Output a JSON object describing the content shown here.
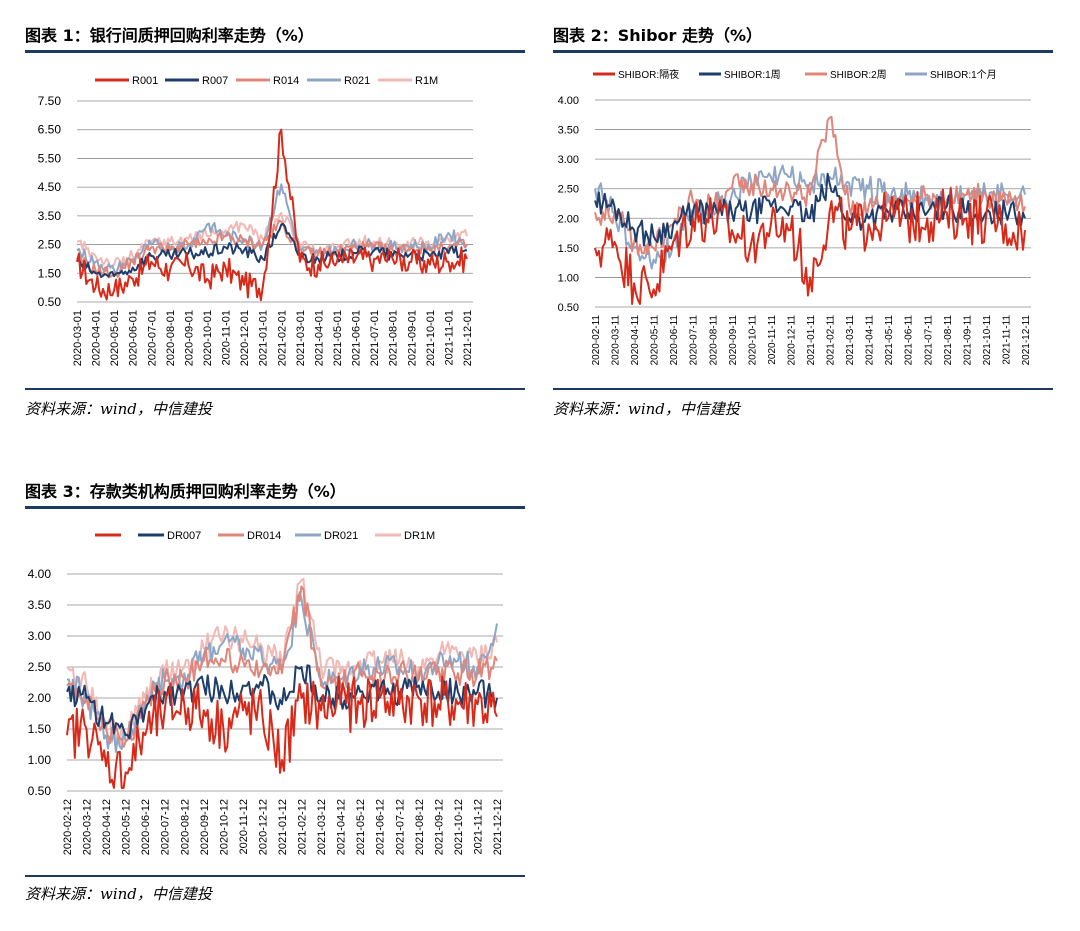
{
  "panels": [
    {
      "title": "图表 1：银行间质押回购利率走势（%）",
      "source": "资料来源：wind，中信建投",
      "chart_data": {
        "type": "line",
        "legend_placement": "top",
        "grid": "horizontal",
        "ylim": [
          0.5,
          7.5
        ],
        "yticks": [
          "7.50",
          "6.50",
          "5.50",
          "4.50",
          "3.50",
          "2.50",
          "1.50",
          "0.50"
        ],
        "x_labels": [
          "2020-03-01",
          "2020-04-01",
          "2020-05-01",
          "2020-06-01",
          "2020-07-01",
          "2020-08-01",
          "2020-09-01",
          "2020-10-01",
          "2020-11-01",
          "2020-12-01",
          "2021-01-01",
          "2021-02-01",
          "2021-03-01",
          "2021-04-01",
          "2021-05-01",
          "2021-06-01",
          "2021-07-01",
          "2021-08-01",
          "2021-09-01",
          "2021-10-01",
          "2021-11-01",
          "2021-12-01"
        ],
        "series": [
          {
            "name": "R001",
            "color": "#d62b1b",
            "values": [
              1.9,
              1.0,
              0.9,
              1.3,
              1.9,
              1.6,
              1.8,
              1.3,
              1.7,
              1.1,
              1.0,
              6.5,
              1.9,
              1.8,
              1.9,
              2.0,
              2.0,
              2.0,
              1.9,
              1.8,
              1.9,
              2.0
            ]
          },
          {
            "name": "R007",
            "color": "#1f3d6b",
            "values": [
              1.9,
              1.5,
              1.4,
              1.7,
              2.1,
              2.1,
              2.2,
              2.2,
              2.4,
              2.3,
              2.0,
              3.2,
              2.1,
              2.0,
              2.1,
              2.2,
              2.3,
              2.1,
              2.2,
              2.1,
              2.2,
              2.3
            ]
          },
          {
            "name": "R014",
            "color": "#e0857a",
            "values": [
              2.0,
              1.6,
              1.5,
              1.9,
              2.4,
              2.3,
              2.5,
              2.5,
              2.8,
              2.6,
              2.5,
              3.3,
              2.2,
              2.2,
              2.3,
              2.4,
              2.4,
              2.3,
              2.4,
              2.3,
              2.4,
              2.5
            ]
          },
          {
            "name": "R021",
            "color": "#8ea6c6",
            "values": [
              2.3,
              1.9,
              1.6,
              2.0,
              2.5,
              2.4,
              2.5,
              3.2,
              2.8,
              2.7,
              2.5,
              4.6,
              2.3,
              2.2,
              2.3,
              2.5,
              2.5,
              2.4,
              2.5,
              2.4,
              2.9,
              2.5
            ]
          },
          {
            "name": "R1M",
            "color": "#f2b8b4",
            "values": [
              2.6,
              2.1,
              1.8,
              2.1,
              2.6,
              2.6,
              2.7,
              2.8,
              3.0,
              3.2,
              2.7,
              3.6,
              2.5,
              2.3,
              2.4,
              2.6,
              2.6,
              2.5,
              2.6,
              2.5,
              2.7,
              2.8
            ]
          }
        ]
      }
    },
    {
      "title": "图表 2：Shibor 走势（%）",
      "source": "资料来源：wind，中信建投",
      "chart_data": {
        "type": "line",
        "legend_placement": "top",
        "grid": "horizontal",
        "ylim": [
          0.5,
          4.0
        ],
        "yticks": [
          "4.00",
          "3.50",
          "3.00",
          "2.50",
          "2.00",
          "1.50",
          "1.00",
          "0.50"
        ],
        "x_labels": [
          "2020-02-11",
          "2020-03-11",
          "2020-04-11",
          "2020-05-11",
          "2020-06-11",
          "2020-07-11",
          "2020-08-11",
          "2020-09-11",
          "2020-10-11",
          "2020-11-11",
          "2020-12-11",
          "2021-01-11",
          "2021-02-11",
          "2021-03-11",
          "2021-04-11",
          "2021-05-11",
          "2021-06-11",
          "2021-07-11",
          "2021-08-11",
          "2021-09-11",
          "2021-10-11",
          "2021-11-11",
          "2021-12-11"
        ],
        "series": [
          {
            "name": "SHIBOR:隔夜",
            "color": "#d62b1b",
            "values": [
              1.5,
              1.6,
              0.9,
              0.8,
              1.6,
              2.0,
              2.0,
              1.8,
              1.6,
              1.9,
              1.8,
              1.0,
              2.1,
              1.8,
              1.9,
              2.0,
              2.0,
              2.0,
              2.1,
              2.0,
              2.0,
              1.9,
              1.8
            ]
          },
          {
            "name": "SHIBOR:1周",
            "color": "#1f3d6b",
            "values": [
              2.3,
              2.2,
              1.8,
              1.7,
              1.9,
              2.1,
              2.1,
              2.1,
              2.1,
              2.2,
              2.2,
              2.0,
              2.6,
              2.0,
              2.0,
              2.1,
              2.1,
              2.1,
              2.2,
              2.1,
              2.1,
              2.1,
              2.0
            ]
          },
          {
            "name": "SHIBOR:2周",
            "color": "#e0857a",
            "values": [
              2.1,
              2.1,
              1.6,
              1.5,
              1.9,
              2.3,
              2.2,
              2.5,
              2.6,
              2.5,
              2.4,
              2.4,
              3.7,
              2.2,
              2.2,
              2.3,
              2.3,
              2.4,
              2.3,
              2.4,
              2.4,
              2.3,
              2.2
            ]
          },
          {
            "name": "SHIBOR:1个月",
            "color": "#8ea6c6",
            "values": [
              2.5,
              2.1,
              1.5,
              1.3,
              1.6,
              2.0,
              2.2,
              2.4,
              2.6,
              2.7,
              2.7,
              2.6,
              2.7,
              2.6,
              2.5,
              2.4,
              2.4,
              2.3,
              2.3,
              2.4,
              2.4,
              2.4,
              2.4
            ]
          }
        ]
      }
    },
    {
      "title": "图表 3：存款类机构质押回购利率走势（%）",
      "source": "资料来源：wind，中信建投",
      "chart_data": {
        "type": "line",
        "legend_placement": "top",
        "grid": "horizontal",
        "ylim": [
          0.5,
          4.0
        ],
        "yticks": [
          "4.00",
          "3.50",
          "3.00",
          "2.50",
          "2.00",
          "1.50",
          "1.00",
          "0.50"
        ],
        "x_labels": [
          "2020-02-12",
          "2020-03-12",
          "2020-04-12",
          "2020-05-12",
          "2020-06-12",
          "2020-07-12",
          "2020-08-12",
          "2020-09-12",
          "2020-10-12",
          "2020-11-12",
          "2020-12-12",
          "2021-01-12",
          "2021-02-12",
          "2021-03-12",
          "2021-04-12",
          "2021-05-12",
          "2021-06-12",
          "2021-07-12",
          "2021-08-12",
          "2021-09-12",
          "2021-10-12",
          "2021-11-12",
          "2021-12-12"
        ],
        "series": [
          {
            "name": "",
            "color": "#d62b1b",
            "values": [
              1.4,
              1.5,
              0.9,
              0.8,
              1.4,
              1.8,
              1.9,
              1.8,
              1.5,
              1.8,
              1.7,
              1.0,
              2.0,
              1.8,
              1.9,
              1.9,
              2.0,
              1.9,
              2.0,
              1.9,
              1.9,
              1.9,
              1.7
            ]
          },
          {
            "name": "DR007",
            "color": "#1f3d6b",
            "values": [
              2.1,
              2.0,
              1.6,
              1.4,
              1.8,
              2.1,
              2.1,
              2.2,
              2.1,
              2.2,
              2.2,
              1.9,
              2.5,
              2.0,
              2.0,
              2.1,
              2.1,
              2.1,
              2.2,
              2.1,
              2.1,
              2.1,
              2.0
            ]
          },
          {
            "name": "DR014",
            "color": "#e0857a",
            "values": [
              2.2,
              2.0,
              1.5,
              1.3,
              1.9,
              2.3,
              2.3,
              2.6,
              2.6,
              2.6,
              2.5,
              2.4,
              3.8,
              2.2,
              2.2,
              2.4,
              2.4,
              2.4,
              2.3,
              2.5,
              2.4,
              2.4,
              2.6
            ]
          },
          {
            "name": "DR021",
            "color": "#8ea6c6",
            "values": [
              2.3,
              2.0,
              1.4,
              1.3,
              1.9,
              2.3,
              2.4,
              2.7,
              2.9,
              2.8,
              2.6,
              2.5,
              3.6,
              2.3,
              2.3,
              2.5,
              2.5,
              2.5,
              2.4,
              2.6,
              2.6,
              2.5,
              3.2
            ]
          },
          {
            "name": "DR1M",
            "color": "#f2b8b4",
            "values": [
              2.5,
              2.2,
              1.5,
              1.4,
              2.0,
              2.4,
              2.5,
              2.8,
              3.0,
              2.9,
              2.8,
              2.6,
              3.9,
              2.5,
              2.4,
              2.6,
              2.6,
              2.6,
              2.5,
              2.7,
              2.7,
              2.6,
              2.9
            ]
          }
        ]
      }
    }
  ]
}
